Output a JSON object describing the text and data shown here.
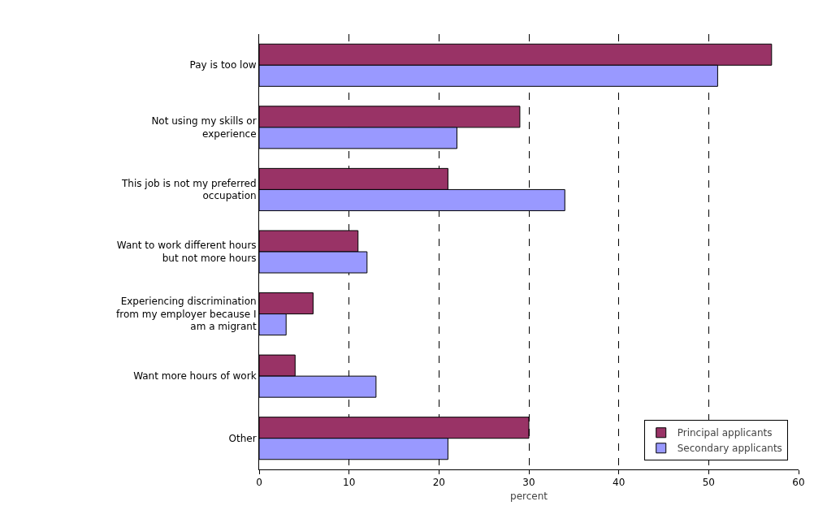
{
  "chart_data": {
    "type": "bar",
    "orientation": "horizontal",
    "xlabel": "percent",
    "categories": [
      "Pay is too low",
      "Not using my skills or\nexperience",
      "This job is not my preferred\noccupation",
      "Want to work different hours\nbut not more hours",
      "Experiencing discrimination\nfrom my employer because I\nam a migrant",
      "Want more hours of work",
      "Other"
    ],
    "series": [
      {
        "name": "Principal applicants",
        "color": "#993366",
        "values": [
          57,
          29,
          21,
          11,
          6,
          4,
          30
        ]
      },
      {
        "name": "Secondary applicants",
        "color": "#9999ff",
        "values": [
          51,
          22,
          34,
          12,
          3,
          13,
          21
        ]
      }
    ],
    "xlim": [
      0,
      60
    ],
    "xticks": [
      0,
      10,
      20,
      30,
      40,
      50,
      60
    ],
    "grid": "x",
    "legend": "bottom right"
  }
}
